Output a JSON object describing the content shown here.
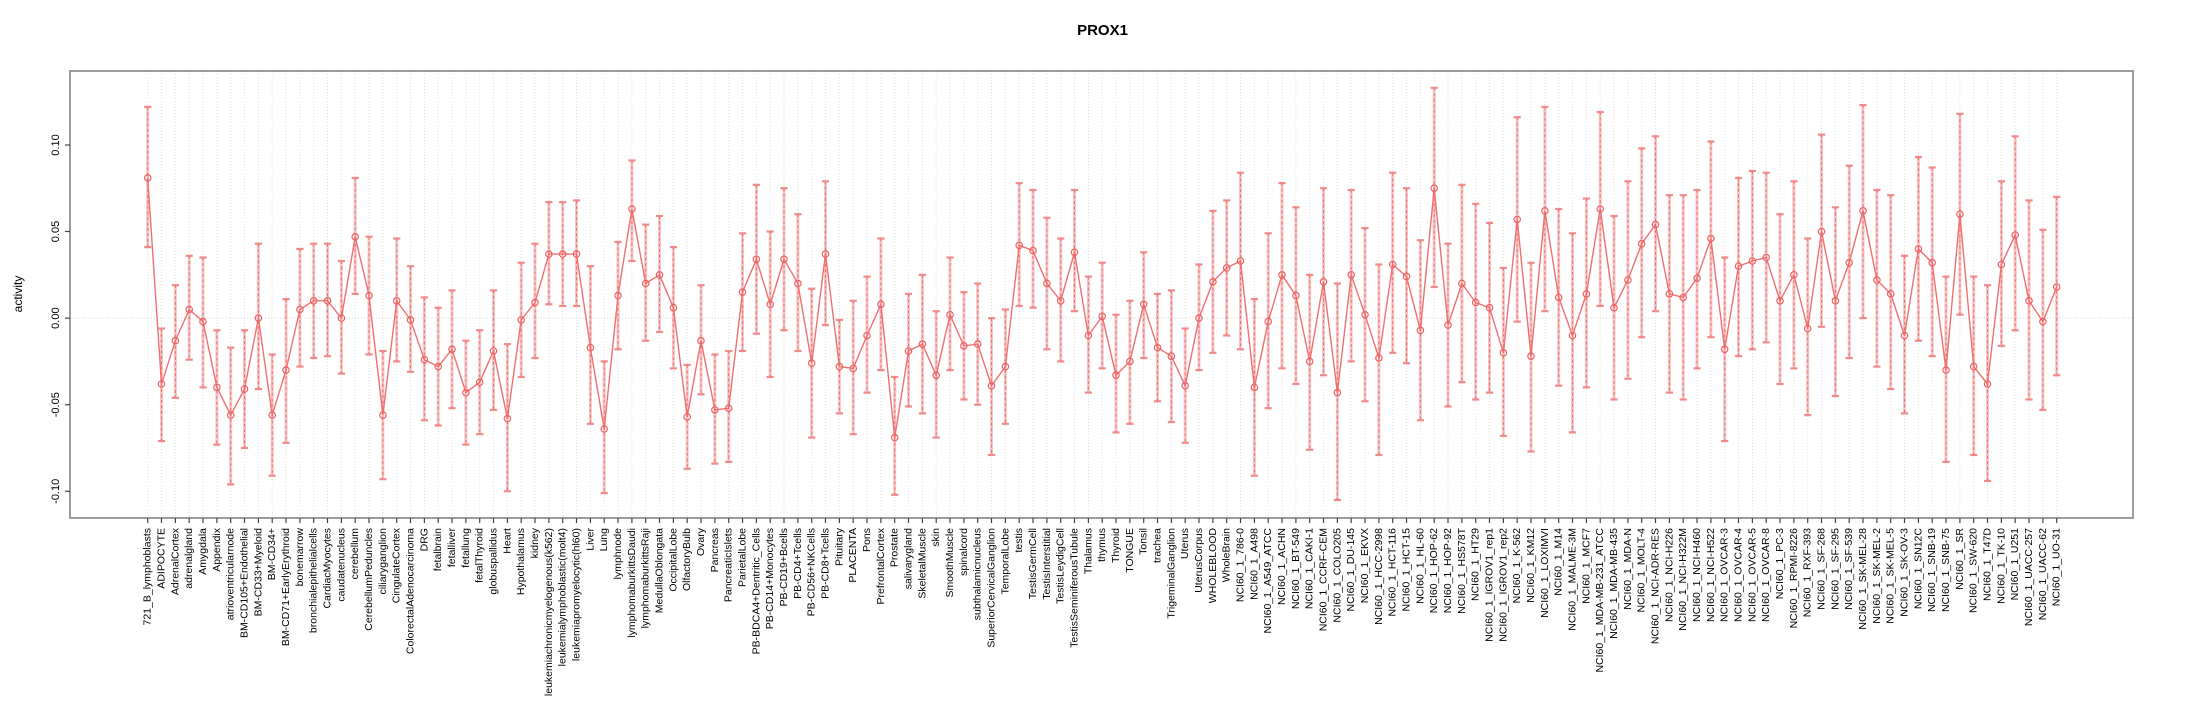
{
  "colors": {
    "series": "#f07070",
    "point_stroke": "#ec6262",
    "errorbar": "#f08080",
    "errorbar_dash": "#e96a6a",
    "grid": "#dedede",
    "box_border": "#919191",
    "tick": "#444444",
    "background": "#ffffff"
  },
  "chart_data": {
    "type": "line",
    "title": "PROX1",
    "xlabel": "",
    "ylabel": "activity",
    "ylim": [
      -0.115,
      0.143
    ],
    "yticks": [
      -0.1,
      -0.05,
      0.0,
      0.05,
      0.1
    ],
    "ytick_labels": [
      "-0.10",
      "-0.05",
      "0.00",
      "0.05",
      "0.10"
    ],
    "grid": "vertical dotted gridline per category; dotted horizontal line at y=0",
    "legend": "none",
    "marker": "open-circle",
    "error_bars": true,
    "categories": [
      "721_B_lymphoblasts",
      "ADIPOCYTE",
      "AdrenalCortex",
      "adrenalgland",
      "Amygdala",
      "Appendix",
      "atrioventricularnode",
      "BM-CD105+Endothelial",
      "BM-CD33+Myeloid",
      "BM-CD34+",
      "BM-CD71+EarlyErythroid",
      "bonemarrow",
      "bronchialepithelialcells",
      "CardiacMyocytes",
      "caudatenucleus",
      "cerebellum",
      "CerebellumPeduncles",
      "ciliaryganglion",
      "CingulateCortex",
      "ColorectalAdenocarcinoma",
      "DRG",
      "fetalbrain",
      "fetalliver",
      "fetallung",
      "fetalThyroid",
      "globuspallidus",
      "Heart",
      "Hypothalamus",
      "kidney",
      "leukemiachronicmyelogenous(k562)",
      "leukemialymphoblastic(molt4)",
      "leukemiapromyelocytic(hl60)",
      "Liver",
      "Lung",
      "lymphnode",
      "lymphomaburkittsDaudi",
      "lymphomaburkittsRaji",
      "MedullaOblongata",
      "OccipitalLobe",
      "OlfactoryBulb",
      "Ovary",
      "Pancreas",
      "PancreaticIslets",
      "ParietalLobe",
      "PB-BDCA4+Dentritic_Cells",
      "PB-CD14+Monocytes",
      "PB-CD19+Bcells",
      "PB-CD4+Tcells",
      "PB-CD56+NKCells",
      "PB-CD8+Tcells",
      "Pituitary",
      "PLACENTA",
      "Pons",
      "PrefrontalCortex",
      "Prostate",
      "salivarygland",
      "SkeletalMuscle",
      "skin",
      "SmoothMuscle",
      "spinalcord",
      "subthalamicnucleus",
      "SuperiorCervicalGanglion",
      "TemporalLobe",
      "testis",
      "TestisGermCell",
      "TestisInterstitial",
      "TestisLeydigCell",
      "TestisSeminiferousTubule",
      "Thalamus",
      "thymus",
      "Thyroid",
      "TONGUE",
      "Tonsil",
      "trachea",
      "TrigeminalGanglion",
      "Uterus",
      "UterusCorpus",
      "WHOLEBLOOD",
      "WholeBrain",
      "NCI60_1_786-0",
      "NCI60_1_A498",
      "NCI60_1_A549_ATCC",
      "NCI60_1_ACHN",
      "NCI60_1_BT-549",
      "NCI60_1_CAKI-1",
      "NCI60_1_CCRF-CEM",
      "NCI60_1_COLO205",
      "NCI60_1_DU-145",
      "NCI60_1_EKVX",
      "NCI60_1_HCC-2998",
      "NCI60_1_HCT-116",
      "NCI60_1_HCT-15",
      "NCI60_1_HL-60",
      "NCI60_1_HOP-62",
      "NCI60_1_HOP-92",
      "NCI60_1_HS578T",
      "NCI60_1_HT29",
      "NCI60_1_IGROV1_rep1",
      "NCI60_1_IGROV1_rep2",
      "NCI60_1_K-562",
      "NCI60_1_KM12",
      "NCI60_1_LOXIMVI",
      "NCI60_1_M14",
      "NCI60_1_MALME-3M",
      "NCI60_1_MCF7",
      "NCI60_1_MDA-MB-231_ATCC",
      "NCI60_1_MDA-MB-435",
      "NCI60_1_MDA-N",
      "NCI60_1_MOLT-4",
      "NCI60_1_NCI-ADR-RES",
      "NCI60_1_NCI-H226",
      "NCI60_1_NCI-H322M",
      "NCI60_1_NCI-H460",
      "NCI60_1_NCI-H522",
      "NCI60_1_OVCAR-3",
      "NCI60_1_OVCAR-4",
      "NCI60_1_OVCAR-5",
      "NCI60_1_OVCAR-8",
      "NCI60_1_PC-3",
      "NCI60_1_RPMI-8226",
      "NCI60_1_RXF-393",
      "NCI60_1_SF-268",
      "NCI60_1_SF-295",
      "NCI60_1_SF-539",
      "NCI60_1_SK-MEL-28",
      "NCI60_1_SK-MEL-2",
      "NCI60_1_SK-MEL-5",
      "NCI60_1_SK-OV-3",
      "NCI60_1_SN12C",
      "NCI60_1_SNB-19",
      "NCI60_1_SNB-75",
      "NCI60_1_SR",
      "NCI60_1_SW-620",
      "NCI60_1_T47D",
      "NCI60_1_TK-10",
      "NCI60_1_U251",
      "NCI60_1_UACC-257",
      "NCI60_1_UACC-62",
      "NCI60_1_UO-31"
    ],
    "values": [
      0.081,
      -0.038,
      -0.013,
      0.005,
      -0.002,
      -0.04,
      -0.056,
      -0.041,
      0.0,
      -0.056,
      -0.03,
      0.005,
      0.01,
      0.01,
      0.0,
      0.047,
      0.013,
      -0.056,
      0.01,
      -0.001,
      -0.024,
      -0.028,
      -0.018,
      -0.043,
      -0.037,
      -0.019,
      -0.058,
      -0.001,
      0.009,
      0.037,
      0.037,
      0.037,
      -0.017,
      -0.064,
      0.013,
      0.063,
      0.02,
      0.025,
      0.006,
      -0.057,
      -0.013,
      -0.053,
      -0.052,
      0.015,
      0.034,
      0.008,
      0.034,
      0.02,
      -0.026,
      0.037,
      -0.028,
      -0.029,
      -0.01,
      0.008,
      -0.069,
      -0.019,
      -0.015,
      -0.033,
      0.002,
      -0.016,
      -0.015,
      -0.039,
      -0.028,
      0.042,
      0.039,
      0.02,
      0.01,
      0.038,
      -0.01,
      0.001,
      -0.033,
      -0.025,
      0.008,
      -0.017,
      -0.022,
      -0.039,
      0.0,
      0.021,
      0.029,
      0.033,
      -0.04,
      -0.002,
      0.025,
      0.013,
      -0.025,
      0.021,
      -0.043,
      0.025,
      0.002,
      -0.023,
      0.031,
      0.024,
      -0.007,
      0.075,
      -0.004,
      0.02,
      0.009,
      0.006,
      -0.02,
      0.057,
      -0.022,
      0.062,
      0.012,
      -0.01,
      0.014,
      0.063,
      0.006,
      0.022,
      0.043,
      0.054,
      0.014,
      0.012,
      0.023,
      0.046,
      -0.018,
      0.03,
      0.033,
      0.035,
      0.01,
      0.025,
      -0.006,
      0.05,
      0.01,
      0.032,
      0.062,
      0.022,
      0.014,
      -0.01,
      0.04,
      0.032,
      -0.03,
      0.06,
      -0.028,
      -0.038,
      0.031,
      0.048,
      0.01,
      -0.002,
      0.018
    ],
    "lower": [
      0.041,
      -0.071,
      -0.046,
      -0.024,
      -0.04,
      -0.073,
      -0.096,
      -0.075,
      -0.041,
      -0.091,
      -0.072,
      -0.028,
      -0.023,
      -0.022,
      -0.032,
      0.014,
      -0.021,
      -0.093,
      -0.025,
      -0.031,
      -0.059,
      -0.062,
      -0.052,
      -0.073,
      -0.067,
      -0.053,
      -0.1,
      -0.034,
      -0.023,
      0.008,
      0.007,
      0.007,
      -0.061,
      -0.101,
      -0.018,
      0.033,
      -0.013,
      -0.008,
      -0.029,
      -0.087,
      -0.044,
      -0.084,
      -0.083,
      -0.019,
      -0.009,
      -0.034,
      -0.007,
      -0.019,
      -0.069,
      -0.004,
      -0.055,
      -0.067,
      -0.043,
      -0.03,
      -0.102,
      -0.051,
      -0.055,
      -0.069,
      -0.03,
      -0.047,
      -0.05,
      -0.079,
      -0.061,
      0.007,
      0.006,
      -0.018,
      -0.025,
      0.004,
      -0.043,
      -0.029,
      -0.066,
      -0.061,
      -0.023,
      -0.048,
      -0.06,
      -0.072,
      -0.03,
      -0.02,
      -0.01,
      -0.018,
      -0.091,
      -0.052,
      -0.029,
      -0.038,
      -0.076,
      -0.033,
      -0.105,
      -0.025,
      -0.048,
      -0.079,
      -0.02,
      -0.026,
      -0.059,
      0.018,
      -0.051,
      -0.037,
      -0.047,
      -0.043,
      -0.068,
      -0.002,
      -0.077,
      0.004,
      -0.039,
      -0.066,
      -0.04,
      0.007,
      -0.047,
      -0.035,
      -0.011,
      0.004,
      -0.043,
      -0.047,
      -0.029,
      -0.011,
      -0.071,
      -0.022,
      -0.018,
      -0.014,
      -0.038,
      -0.029,
      -0.056,
      -0.005,
      -0.045,
      -0.023,
      0.0,
      -0.028,
      -0.041,
      -0.055,
      -0.013,
      -0.022,
      -0.083,
      0.002,
      -0.079,
      -0.094,
      -0.016,
      -0.007,
      -0.047,
      -0.053,
      -0.033
    ],
    "upper": [
      0.122,
      -0.006,
      0.019,
      0.036,
      0.035,
      -0.007,
      -0.017,
      -0.007,
      0.043,
      -0.021,
      0.011,
      0.04,
      0.043,
      0.043,
      0.033,
      0.081,
      0.047,
      -0.019,
      0.046,
      0.03,
      0.012,
      0.006,
      0.016,
      -0.013,
      -0.007,
      0.016,
      -0.015,
      0.032,
      0.043,
      0.067,
      0.067,
      0.068,
      0.03,
      -0.025,
      0.044,
      0.091,
      0.054,
      0.059,
      0.041,
      -0.027,
      0.019,
      -0.021,
      -0.019,
      0.049,
      0.077,
      0.05,
      0.075,
      0.06,
      0.017,
      0.079,
      -0.001,
      0.01,
      0.024,
      0.046,
      -0.034,
      0.014,
      0.025,
      0.004,
      0.035,
      0.015,
      0.02,
      0.0,
      0.005,
      0.078,
      0.074,
      0.058,
      0.046,
      0.074,
      0.024,
      0.032,
      0.002,
      0.01,
      0.038,
      0.014,
      0.016,
      -0.006,
      0.031,
      0.062,
      0.068,
      0.084,
      0.011,
      0.049,
      0.078,
      0.064,
      0.025,
      0.075,
      0.02,
      0.074,
      0.052,
      0.031,
      0.084,
      0.075,
      0.045,
      0.133,
      0.043,
      0.077,
      0.066,
      0.055,
      0.029,
      0.116,
      0.032,
      0.122,
      0.063,
      0.049,
      0.069,
      0.119,
      0.059,
      0.079,
      0.098,
      0.105,
      0.071,
      0.071,
      0.074,
      0.102,
      0.035,
      0.081,
      0.085,
      0.084,
      0.06,
      0.079,
      0.046,
      0.106,
      0.064,
      0.088,
      0.123,
      0.074,
      0.071,
      0.036,
      0.093,
      0.087,
      0.024,
      0.118,
      0.024,
      0.019,
      0.079,
      0.105,
      0.068,
      0.051,
      0.07
    ]
  }
}
